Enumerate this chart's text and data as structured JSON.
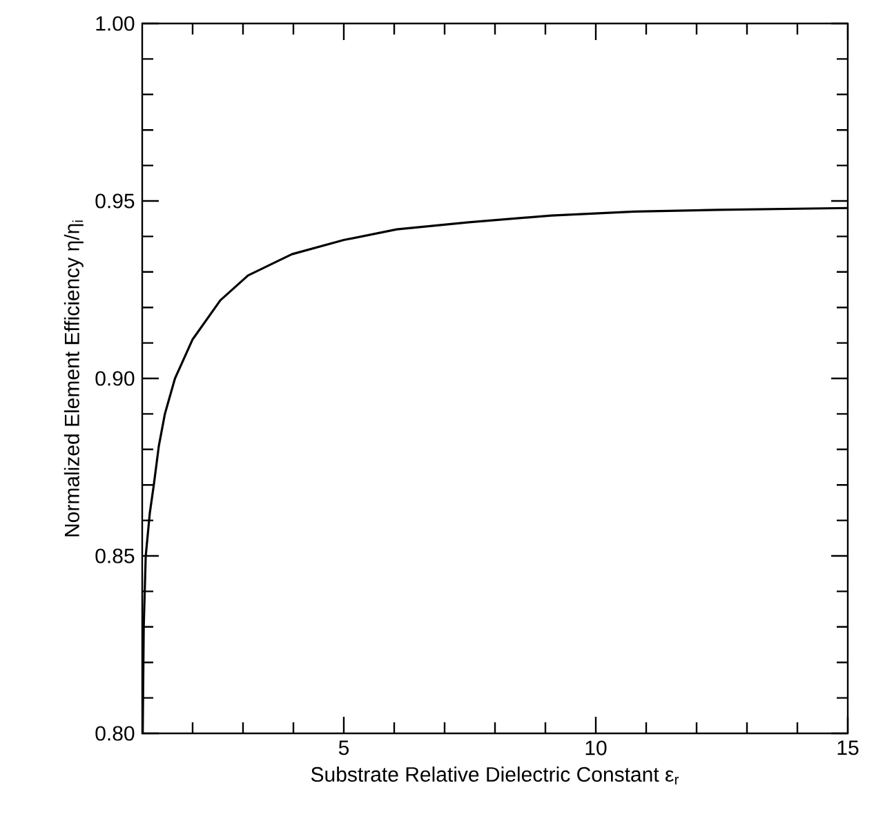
{
  "chart_data": {
    "type": "line",
    "xlabel": "Substrate Relative Dielectric Constant ε$_{r}$",
    "ylabel": "Normalized Element Efficiency η/η$_{i}$",
    "x": [
      1.01,
      1.03,
      1.07,
      1.15,
      1.23,
      1.33,
      1.45,
      1.65,
      2.0,
      2.55,
      3.1,
      3.97,
      5,
      6.05,
      7.48,
      9.12,
      10.77,
      12.42,
      15
    ],
    "series": [
      {
        "color": "#000000",
        "values": [
          0.8,
          0.83,
          0.85,
          0.862,
          0.87,
          0.881,
          0.89,
          0.9,
          0.911,
          0.922,
          0.929,
          0.935,
          0.939,
          0.942,
          0.944,
          0.9459,
          0.947,
          0.9475,
          0.948
        ]
      }
    ],
    "xlim": [
      1,
      15
    ],
    "ylim": [
      0.8,
      1.0
    ],
    "xticks": [
      {
        "value": 2,
        "label": null
      },
      {
        "value": 3,
        "label": null
      },
      {
        "value": 4,
        "label": null
      },
      5,
      {
        "value": 6,
        "label": null
      },
      {
        "value": 7,
        "label": null
      },
      {
        "value": 8,
        "label": null
      },
      {
        "value": 9,
        "label": null
      },
      10,
      {
        "value": 11,
        "label": null
      },
      {
        "value": 12,
        "label": null
      },
      {
        "value": 13,
        "label": null
      },
      {
        "value": 14,
        "label": null
      },
      15
    ],
    "yticks": [
      {
        "value": 0.8,
        "label": "0.80"
      },
      {
        "value": 0.81,
        "label": null
      },
      {
        "value": 0.82,
        "label": null
      },
      {
        "value": 0.83,
        "label": null
      },
      {
        "value": 0.84,
        "label": null
      },
      0.85,
      {
        "value": 0.86,
        "label": null
      },
      {
        "value": 0.87,
        "label": null
      },
      {
        "value": 0.88,
        "label": null
      },
      {
        "value": 0.89,
        "label": null
      },
      {
        "value": 0.9,
        "label": "0.90"
      },
      {
        "value": 0.91,
        "label": null
      },
      {
        "value": 0.92,
        "label": null
      },
      {
        "value": 0.93,
        "label": null
      },
      {
        "value": 0.94,
        "label": null
      },
      0.95,
      {
        "value": 0.96,
        "label": null
      },
      {
        "value": 0.97,
        "label": null
      },
      {
        "value": 0.98,
        "label": null
      },
      {
        "value": 0.99,
        "label": null
      },
      {
        "value": 1.0,
        "label": "1.00"
      }
    ],
    "line_style": "solid",
    "marker": "none"
  }
}
